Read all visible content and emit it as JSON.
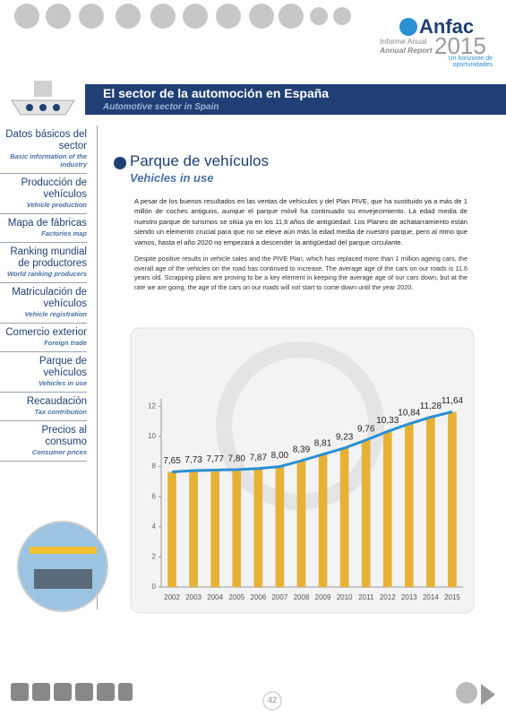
{
  "header": {
    "brand": "Anfac",
    "report_es": "Informe Anual",
    "report_en": "Annual Report",
    "year": "2015",
    "tagline": "Un horizonte de oportunidades"
  },
  "banner": {
    "title": "El sector de la automoción en España",
    "subtitle": "Automotive sector in Spain"
  },
  "nav": [
    {
      "es": "Datos básicos del sector",
      "en": "Basic information of the industry"
    },
    {
      "es": "Producción de vehículos",
      "en": "Vehicle production"
    },
    {
      "es": "Mapa de fábricas",
      "en": "Factories map"
    },
    {
      "es": "Ranking mundial de productores",
      "en": "World ranking producers"
    },
    {
      "es": "Matriculación de vehículos",
      "en": "Vehicle registration"
    },
    {
      "es": "Comercio exterior",
      "en": "Foreign trade"
    },
    {
      "es": "Parque de vehículos",
      "en": "Vehicles in use"
    },
    {
      "es": "Recaudación",
      "en": "Tax contribution"
    },
    {
      "es": "Precios al consumo",
      "en": "Consumer prices"
    }
  ],
  "section": {
    "title": "Parque de vehículos",
    "subtitle": "Vehicles in use",
    "paragraph_es": "A pesar de los buenos resultados en las ventas de vehículos y del Plan PIVE, que ha sustituido ya a más de 1 millón de coches antiguos, aunque el parque móvil ha continuado su envejecimiento. La edad media de nuestro parque de turismos se sitúa ya en los 11,6 años de antigüedad. Los Planes de achatarramiento están siendo un elemento crucial para que no se eleve aún más la edad media de nuestro parque, pero al ritmo que vamos, hasta el año 2020 no empezará a descender la antigüedad del parque circulante.",
    "paragraph_en": "Despite positive results in vehicle sales and the PIVE Plan, which has replaced more than 1 million ageing cars, the overall age of the vehicles on the road has continued to increase. The average age of the cars on our roads is 11.6 years old. Scrapping plans are proving to be a key element in keeping the average age of our cars down, but at the rate we are going, the age of the cars on our roads will not start to come down until the year 2020."
  },
  "chart_data": {
    "type": "bar",
    "categories": [
      "2002",
      "2003",
      "2004",
      "2005",
      "2006",
      "2007",
      "2008",
      "2009",
      "2010",
      "2011",
      "2012",
      "2013",
      "2014",
      "2015"
    ],
    "values": [
      7.65,
      7.73,
      7.77,
      7.8,
      7.87,
      8.0,
      8.39,
      8.81,
      9.23,
      9.76,
      10.33,
      10.84,
      11.28,
      11.64
    ],
    "value_labels": [
      "7,65",
      "7,73",
      "7,77",
      "7,80",
      "7,87",
      "8,00",
      "8,39",
      "8,81",
      "9,23",
      "9,76",
      "10,33",
      "10,84",
      "11,28",
      "11,64"
    ],
    "color": "#e6b135",
    "line_color": "#2b8fd3",
    "ylim": [
      0,
      12.5
    ],
    "yticks": [
      0,
      2,
      4,
      6,
      8,
      10,
      12
    ]
  },
  "footer": {
    "page": "42"
  }
}
